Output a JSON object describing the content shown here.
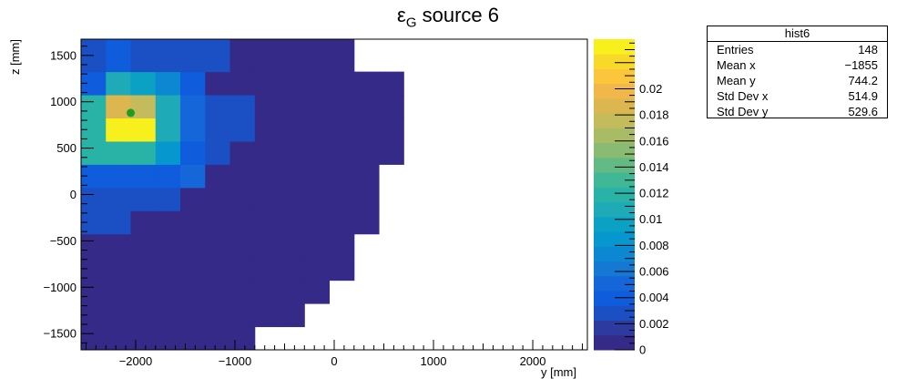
{
  "title_main": "ε",
  "title_sub": "G",
  "title_rest": " source 6",
  "stats": {
    "name": "hist6",
    "rows": [
      {
        "label": "Entries",
        "value": "148"
      },
      {
        "label": "Mean x",
        "value": "−1855"
      },
      {
        "label": "Mean y",
        "value": "744.2"
      },
      {
        "label": "Std Dev x",
        "value": "514.9"
      },
      {
        "label": "Std Dev y",
        "value": "529.6"
      }
    ]
  },
  "chart_data": {
    "type": "heatmap",
    "xlabel": "y [mm]",
    "ylabel": "z [mm]",
    "xlim": [
      -2550,
      2550
    ],
    "ylim": [
      -1675,
      1675
    ],
    "xticks": [
      -2000,
      -1000,
      0,
      1000,
      2000
    ],
    "xtick_labels": [
      "−2000",
      "−1000",
      "0",
      "1000",
      "2000"
    ],
    "yticks": [
      -1500,
      -1000,
      -500,
      0,
      500,
      1000,
      1500
    ],
    "ytick_labels": [
      "−1500",
      "−1000",
      "−500",
      "0",
      "500",
      "1000",
      "1500"
    ],
    "zlim": [
      0,
      0.0238
    ],
    "zticks": [
      0,
      0.002,
      0.004,
      0.006,
      0.008,
      0.01,
      0.012,
      0.014,
      0.016,
      0.018,
      0.02
    ],
    "ztick_labels": [
      "0",
      "0.002",
      "0.004",
      "0.006",
      "0.008",
      "0.01",
      "0.012",
      "0.014",
      "0.016",
      "0.018",
      "0.02"
    ],
    "palette": [
      "#352a87",
      "#2e3b9e",
      "#1b50c4",
      "#0f5cdd",
      "#1466d9",
      "#1579d4",
      "#0c88d2",
      "#0697cf",
      "#0aa1c5",
      "#1eabb7",
      "#29b2a6",
      "#40b896",
      "#62ba84",
      "#8abb72",
      "#a8bc66",
      "#c4bb5c",
      "#dcb64e",
      "#f0b84a",
      "#fbc63b",
      "#f8d92a",
      "#f8f01c"
    ],
    "bin_edges_x": [
      -2550,
      -2300,
      -2050,
      -1800,
      -1550,
      -1300,
      -1050,
      -800,
      -550,
      -300,
      -50,
      200,
      450,
      700
    ],
    "bin_edges_y": [
      -1675,
      -1425,
      -1175,
      -925,
      -675,
      -425,
      -175,
      75,
      325,
      575,
      825,
      1075,
      1325,
      1675
    ],
    "bins": [
      [
        0.0006,
        0.0006,
        0.0006,
        0.0006,
        0.0006,
        0.0006,
        0.0006,
        null,
        null,
        null,
        null,
        null,
        null
      ],
      [
        0.0006,
        0.0006,
        0.0006,
        0.0006,
        0.0006,
        0.0006,
        0.0006,
        0.0006,
        0.0006,
        null,
        null,
        null,
        null
      ],
      [
        0.0006,
        0.0006,
        0.0006,
        0.0006,
        0.0006,
        0.0006,
        0.0006,
        0.0006,
        0.0006,
        0.0006,
        null,
        null,
        null
      ],
      [
        0.0006,
        0.0006,
        0.0006,
        0.0006,
        0.0006,
        0.0006,
        0.0006,
        0.0006,
        0.0006,
        0.0006,
        0.0006,
        null,
        null
      ],
      [
        0.0006,
        0.0006,
        0.0006,
        0.0006,
        0.0006,
        0.0006,
        0.0006,
        0.0006,
        0.0006,
        0.0006,
        0.0006,
        null,
        null
      ],
      [
        0.003,
        0.003,
        0.0006,
        0.0006,
        0.0006,
        0.0006,
        0.0006,
        0.0006,
        0.0006,
        0.0006,
        0.0006,
        0.0006,
        null
      ],
      [
        0.003,
        0.003,
        0.003,
        0.003,
        0.0006,
        0.0006,
        0.0006,
        0.0006,
        0.0006,
        0.0006,
        0.0006,
        0.0006,
        null
      ],
      [
        0.004,
        0.004,
        0.004,
        0.004,
        0.005,
        0.0006,
        0.0006,
        0.0006,
        0.0006,
        0.0006,
        0.0006,
        0.0006,
        null
      ],
      [
        0.012,
        0.012,
        0.012,
        0.009,
        0.004,
        0.003,
        0.0006,
        0.0006,
        0.0006,
        0.0006,
        0.0006,
        0.0006,
        0.0006
      ],
      [
        0.012,
        0.0238,
        0.0238,
        0.011,
        0.005,
        0.003,
        0.003,
        0.0006,
        0.0006,
        0.0006,
        0.0006,
        0.0006,
        0.0006
      ],
      [
        0.012,
        0.019,
        0.018,
        0.011,
        0.005,
        0.003,
        0.003,
        0.0006,
        0.0006,
        0.0006,
        0.0006,
        0.0006,
        0.0006
      ],
      [
        0.004,
        0.011,
        0.01,
        0.007,
        0.004,
        0.0006,
        0.0006,
        0.0006,
        0.0006,
        0.0006,
        0.0006,
        0.0006,
        0.0006
      ],
      [
        0.003,
        0.004,
        0.003,
        0.003,
        0.003,
        0.003,
        0.0006,
        0.0006,
        0.0006,
        0.0006,
        0.0006,
        null,
        null
      ]
    ],
    "marker": {
      "x": -2050,
      "y": 880,
      "color": "#1e9e1e"
    },
    "grid": false,
    "legend": "none"
  }
}
